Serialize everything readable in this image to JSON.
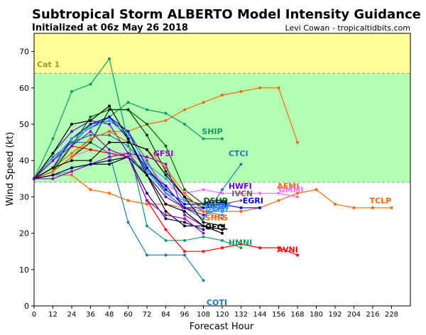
{
  "header": {
    "title": "Subtropical Storm ALBERTO Model Intensity Guidance",
    "initialized": "Initialized at 06z May 26 2018",
    "credit": "Levi Cowan - tropicaltidbits.com"
  },
  "chart_data": {
    "type": "line",
    "xlabel": "Forecast Hour",
    "ylabel": "Wind Speed (kt)",
    "xlim": [
      0,
      240
    ],
    "ylim": [
      0,
      75
    ],
    "xticks": [
      0,
      12,
      24,
      36,
      48,
      60,
      72,
      84,
      96,
      108,
      120,
      132,
      144,
      156,
      168,
      180,
      192,
      204,
      216,
      228
    ],
    "yticks": [
      0,
      10,
      20,
      30,
      40,
      50,
      60,
      70
    ],
    "grid": false,
    "bands": [
      {
        "from": 0,
        "to": 34,
        "color": "#ffffff"
      },
      {
        "from": 34,
        "to": 64,
        "color": "#b3ffb3"
      },
      {
        "from": 64,
        "to": 75,
        "color": "#ffff99"
      }
    ],
    "thresholds": [
      {
        "value": 34,
        "label": "",
        "color": "#999999"
      },
      {
        "value": 64,
        "label": "Cat 1",
        "color": "#999999"
      }
    ],
    "cat_label_color": "#999933",
    "series": [
      {
        "name": "TCLP",
        "color": "#ff6600",
        "x": [
          0,
          12,
          24,
          36,
          48,
          60,
          72,
          84,
          96,
          108,
          120,
          132,
          144,
          156,
          168,
          180,
          192,
          204,
          216,
          228
        ],
        "y": [
          35,
          36,
          36,
          32,
          31,
          29,
          28,
          28,
          27,
          26,
          26,
          26,
          27,
          29,
          31,
          32,
          28,
          27,
          27,
          27
        ]
      },
      {
        "name": "AEMI",
        "color": "#ff6600",
        "x": [
          0,
          12,
          24,
          36,
          48,
          60,
          72,
          84,
          96,
          108,
          120,
          132,
          144,
          156,
          168
        ],
        "y": [
          35,
          38,
          42,
          46,
          48,
          48,
          50,
          51,
          54,
          56,
          58,
          59,
          60,
          60,
          45
        ]
      },
      {
        "name": "SHIP",
        "color": "#119966",
        "x": [
          0,
          12,
          24,
          36,
          48,
          60,
          72,
          84,
          96,
          108,
          120
        ],
        "y": [
          35,
          38,
          44,
          50,
          52,
          56,
          54,
          53,
          50,
          46,
          46
        ]
      },
      {
        "name": "GMMI",
        "color": "#ff66ff",
        "x": [
          0,
          12,
          24,
          36,
          48,
          60,
          72,
          84,
          96,
          108,
          120,
          132,
          144,
          156,
          168
        ],
        "y": [
          35,
          37,
          41,
          43,
          42,
          42,
          39,
          33,
          31,
          32,
          31,
          31,
          31,
          31,
          30
        ]
      },
      {
        "name": "HWFI",
        "color": "#6600cc",
        "x": [
          0,
          12,
          24,
          36,
          48,
          60,
          72,
          84,
          96,
          108,
          120
        ],
        "y": [
          35,
          42,
          48,
          51,
          50,
          42,
          36,
          30,
          27,
          25,
          27
        ]
      },
      {
        "name": "IVCN",
        "color": "#666666",
        "x": [
          0,
          12,
          24,
          36,
          48,
          60,
          72,
          84,
          96,
          108,
          120,
          132
        ],
        "y": [
          35,
          40,
          46,
          50,
          51,
          48,
          40,
          31,
          29,
          28,
          28,
          29
        ]
      },
      {
        "name": "CTCI",
        "color": "#1f77b4",
        "x": [
          0,
          12,
          24,
          36,
          48,
          60,
          72,
          84,
          96,
          108,
          120,
          132
        ],
        "y": [
          35,
          40,
          45,
          47,
          47,
          44,
          38,
          31,
          27,
          24,
          32,
          39
        ]
      },
      {
        "name": "EGRI",
        "color": "#0000dd",
        "x": [
          0,
          12,
          24,
          36,
          48,
          60,
          72,
          84,
          96,
          108,
          120,
          132,
          144
        ],
        "y": [
          35,
          40,
          46,
          49,
          52,
          48,
          38,
          32,
          28,
          28,
          28,
          27,
          27
        ]
      },
      {
        "name": "HMNI",
        "color": "#119966",
        "x": [
          0,
          12,
          24,
          36,
          48,
          60,
          72,
          84,
          96,
          108,
          120,
          132
        ],
        "y": [
          35,
          46,
          59,
          61,
          68,
          45,
          22,
          18,
          18,
          19,
          18,
          16
        ]
      },
      {
        "name": "AVNI",
        "color": "#ff0000",
        "x": [
          0,
          12,
          24,
          36,
          48,
          60,
          72,
          84,
          96,
          108,
          120,
          132,
          144,
          156,
          168
        ],
        "y": [
          35,
          37,
          44,
          43,
          42,
          41,
          29,
          21,
          15,
          15,
          16,
          17,
          16,
          16,
          14
        ]
      },
      {
        "name": "COTI",
        "color": "#1f77b4",
        "x": [
          0,
          12,
          24,
          36,
          48,
          60,
          72,
          84,
          96,
          108
        ],
        "y": [
          35,
          41,
          45,
          45,
          42,
          23,
          14,
          14,
          14,
          7
        ]
      },
      {
        "name": "DSHP",
        "color": "#006600",
        "x": [
          0,
          12,
          24,
          36,
          48,
          60,
          72,
          84,
          96,
          108,
          120
        ],
        "y": [
          35,
          37,
          44,
          52,
          54,
          54,
          50,
          44,
          32,
          28,
          28
        ]
      },
      {
        "name": "LGEM",
        "color": "#003300",
        "x": [
          0,
          12,
          24,
          36,
          48,
          60,
          72,
          84,
          96,
          108,
          120
        ],
        "y": [
          35,
          37,
          41,
          45,
          54,
          54,
          47,
          37,
          30,
          27,
          27
        ]
      },
      {
        "name": "NVGI",
        "color": "#0000cc",
        "x": [
          0,
          12,
          24,
          36,
          48,
          60,
          72,
          84,
          96,
          108,
          120
        ],
        "y": [
          35,
          38,
          46,
          50,
          52,
          46,
          37,
          33,
          27,
          27,
          28
        ]
      },
      {
        "name": "HWRF",
        "color": "#3399ff",
        "x": [
          0,
          12,
          24,
          36,
          48,
          60,
          72,
          84,
          96,
          108,
          120
        ],
        "y": [
          35,
          40,
          46,
          49,
          51,
          47,
          39,
          35,
          29,
          26,
          26
        ]
      },
      {
        "name": "UKMI",
        "color": "#3399ff",
        "x": [
          0,
          12,
          24,
          36,
          48,
          60,
          72,
          84,
          96,
          108,
          120
        ],
        "y": [
          35,
          36,
          37,
          39,
          40,
          41,
          37,
          31,
          29,
          26,
          25
        ]
      },
      {
        "name": "SHFS",
        "color": "#ff6600",
        "x": [
          0,
          12,
          24,
          36,
          48,
          60,
          72,
          84,
          96,
          108,
          120
        ],
        "y": [
          35,
          37,
          41,
          46,
          48,
          45,
          43,
          38,
          31,
          26,
          24
        ]
      },
      {
        "name": "OFCL",
        "color": "#000000",
        "x": [
          0,
          12,
          24,
          36,
          48,
          60,
          72,
          84,
          96,
          108,
          120
        ],
        "y": [
          35,
          38,
          40,
          40,
          45,
          45,
          43,
          36,
          30,
          23,
          22
        ]
      },
      {
        "name": "GFSI",
        "color": "#9900cc",
        "x": [
          0,
          12,
          24,
          36,
          48,
          60,
          72,
          84,
          96,
          108,
          120
        ],
        "y": [
          35,
          35,
          37,
          39,
          41,
          42,
          41,
          39,
          25,
          22,
          20
        ]
      },
      {
        "name": "",
        "color": "#000000",
        "x": [
          0,
          12,
          24,
          36,
          48,
          60,
          72,
          84,
          96,
          108,
          120
        ],
        "y": [
          35,
          42,
          50,
          51,
          55,
          46,
          36,
          28,
          26,
          22,
          21
        ]
      },
      {
        "name": "",
        "color": "#000000",
        "x": [
          0,
          12,
          24,
          36,
          48,
          60,
          72,
          84,
          96,
          108,
          120
        ],
        "y": [
          35,
          36,
          38,
          39,
          39,
          41,
          36,
          26,
          22,
          22,
          20
        ]
      },
      {
        "name": "",
        "color": "#000066",
        "x": [
          0,
          12,
          24,
          36,
          48,
          60,
          72,
          84,
          96,
          108
        ],
        "y": [
          35,
          36,
          38,
          39,
          40,
          41,
          31,
          24,
          23,
          21
        ]
      },
      {
        "name": "",
        "color": "#9900cc",
        "x": [
          0,
          12,
          24,
          36,
          48,
          60,
          72,
          84,
          96,
          108
        ],
        "y": [
          35,
          40,
          44,
          48,
          43,
          41,
          29,
          25,
          24,
          20
        ]
      }
    ],
    "labels": [
      {
        "text": "SHIP",
        "color": "#119966",
        "x": 107,
        "y": 48
      },
      {
        "text": "CTCI",
        "color": "#1f77b4",
        "x": 124,
        "y": 42
      },
      {
        "text": "GFSI",
        "color": "#9900cc",
        "x": 76,
        "y": 42
      },
      {
        "text": "AEMI",
        "color": "#ff6600",
        "x": 155,
        "y": 33
      },
      {
        "text": "GMMI",
        "color": "#ff66ff",
        "x": 156,
        "y": 32
      },
      {
        "text": "HWFI",
        "color": "#6600cc",
        "x": 124,
        "y": 33
      },
      {
        "text": "IVCN",
        "color": "#666666",
        "x": 126,
        "y": 31
      },
      {
        "text": "TCLP",
        "color": "#ff6600",
        "x": 214,
        "y": 29
      },
      {
        "text": "EGRI",
        "color": "#0000dd",
        "x": 133,
        "y": 29
      },
      {
        "text": "DSHP",
        "color": "#006600",
        "x": 108,
        "y": 29
      },
      {
        "text": "LGEM",
        "color": "#003300",
        "x": 108,
        "y": 28.4
      },
      {
        "text": "NVGI",
        "color": "#0000cc",
        "x": 109,
        "y": 27.9
      },
      {
        "text": "HWRF",
        "color": "#3399ff",
        "x": 109,
        "y": 27.4
      },
      {
        "text": "UKMI",
        "color": "#3399ff",
        "x": 109,
        "y": 26.8
      },
      {
        "text": "SHFS",
        "color": "#ff6600",
        "x": 109,
        "y": 24.3
      },
      {
        "text": "OFCL",
        "color": "#000000",
        "x": 109,
        "y": 21.8
      },
      {
        "text": "HMNI",
        "color": "#119966",
        "x": 124,
        "y": 17.5
      },
      {
        "text": "AVNI",
        "color": "#ff0000",
        "x": 155,
        "y": 15.5
      },
      {
        "text": "COTI",
        "color": "#1f77b4",
        "x": 110,
        "y": 1
      }
    ]
  }
}
